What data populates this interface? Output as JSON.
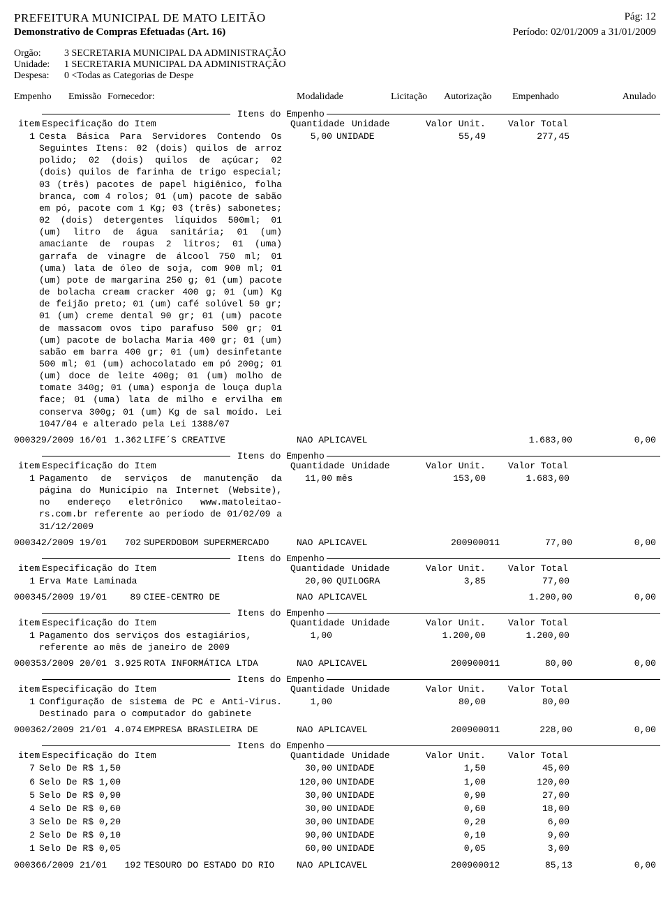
{
  "header": {
    "prefeitura": "PREFEITURA MUNICIPAL DE MATO LEITÃO",
    "pag_label": "Pág:",
    "pag_num": "12",
    "demonstrativo": "Demonstrativo de Compras Efetuadas (Art. 16)",
    "periodo": "Período: 02/01/2009 a 31/01/2009"
  },
  "org": {
    "orgao_label": "Orgão:",
    "orgao_value": "3 SECRETARIA MUNICIPAL DA ADMINISTRAÇÃO",
    "unidade_label": "Unidade:",
    "unidade_value": "1 SECRETARIA MUNICIPAL DA ADMINISTRAÇÃO",
    "despesa_label": "Despesa:",
    "despesa_value": "0 <Todas as Categorias de Despe"
  },
  "cols": {
    "empenho": "Empenho",
    "emissao": "Emissão",
    "fornecedor": "Fornecedor:",
    "modalidade": "Modalidade",
    "licitacao": "Licitação",
    "autorizacao": "Autorização",
    "empenhado": "Empenhado",
    "anulado": "Anulado"
  },
  "section_header": {
    "itens": "Itens do Empenho",
    "item": "item",
    "espec": "Especificação do Item",
    "qtd": "Quantidade",
    "unidade": "Unidade",
    "vu": "Valor Unit.",
    "vt": "Valor Total"
  },
  "entries": [
    {
      "header_only": true,
      "items": [
        {
          "num": "1",
          "spec": "Cesta Básica Para Servidores Contendo Os Seguintes Itens: 02 (dois) quilos de arroz polido; 02 (dois) quilos de açúcar; 02 (dois) quilos de farinha de trigo especial; 03 (três) pacotes de papel higiênico, folha branca, com 4 rolos; 01 (um) pacote de sabão em pó, pacote com 1 Kg; 03 (três) sabonetes; 02 (dois) detergentes líquidos 500ml; 01 (um) litro de água sanitária; 01 (um) amaciante de roupas 2 litros; 01 (uma) garrafa de vinagre de álcool 750 ml; 01 (uma) lata de óleo de soja, com 900 ml; 01 (um) pote de margarina 250 g; 01 (um) pacote de bolacha cream cracker 400 g; 01 (um) Kg de feijão preto; 01 (um) café solúvel 50 gr; 01 (um) creme dental 90 gr; 01 (um) pacote de massacom ovos tipo parafuso 500 gr; 01 (um) pacote de bolacha Maria 400 gr; 01 (um) sabão em barra 400 gr; 01 (um) desinfetante 500 ml; 01 (um) achocolatado em pó 200g; 01 (um) doce de leite 400g; 01 (um) molho de tomate 340g; 01 (uma) esponja de louça dupla face; 01 (uma) lata de milho e ervilha em conserva 300g; 01 (um) Kg de sal moído. Lei 1047/04 e alterado pela Lei 1388/07",
          "qty": "5,00",
          "unit": "UNIDADE",
          "vu": "55,49",
          "vt": "277,45",
          "justify": true
        }
      ]
    },
    {
      "empenho": "000329/2009",
      "emissao": "16/01",
      "cod": "1.362",
      "fornecedor": "LIFE´S CREATIVE",
      "modalidade": "NAO APLICAVEL",
      "licitacao": "",
      "autorizacao": "",
      "empenhado": "1.683,00",
      "anulado": "0,00",
      "items": [
        {
          "num": "1",
          "spec": "Pagamento de serviços de manutenção da página do Município na Internet (Website), no endereço eletrônico www.matoleitao-rs.com.br referente ao período de 01/02/09 a 31/12/2009",
          "qty": "11,00",
          "unit": "mês",
          "vu": "153,00",
          "vt": "1.683,00",
          "justify": true
        }
      ]
    },
    {
      "empenho": "000342/2009",
      "emissao": "19/01",
      "cod": "702",
      "fornecedor": "SUPERDOBOM SUPERMERCADO",
      "modalidade": "NAO APLICAVEL",
      "licitacao": "",
      "autorizacao": "200900011",
      "empenhado": "77,00",
      "anulado": "0,00",
      "items": [
        {
          "num": "1",
          "spec": "Erva Mate Laminada",
          "qty": "20,00",
          "unit": "QUILOGRA",
          "vu": "3,85",
          "vt": "77,00",
          "justify": false
        }
      ]
    },
    {
      "empenho": "000345/2009",
      "emissao": "19/01",
      "cod": "89",
      "fornecedor": "CIEE-CENTRO DE",
      "modalidade": "NAO APLICAVEL",
      "licitacao": "",
      "autorizacao": "",
      "empenhado": "1.200,00",
      "anulado": "0,00",
      "items": [
        {
          "num": "1",
          "spec": "Pagamento dos serviços dos estagiários, referente ao mês de janeiro de 2009",
          "qty": "1,00",
          "unit": "",
          "vu": "1.200,00",
          "vt": "1.200,00",
          "justify": false
        }
      ]
    },
    {
      "empenho": "000353/2009",
      "emissao": "20/01",
      "cod": "3.925",
      "fornecedor": "ROTA INFORMÁTICA LTDA",
      "modalidade": "NAO APLICAVEL",
      "licitacao": "",
      "autorizacao": "200900011",
      "empenhado": "80,00",
      "anulado": "0,00",
      "items": [
        {
          "num": "1",
          "spec": "Configuração de sistema de PC e Anti-Virus. Destinado para o computador do gabinete",
          "qty": "1,00",
          "unit": "",
          "vu": "80,00",
          "vt": "80,00",
          "justify": true
        }
      ]
    },
    {
      "empenho": "000362/2009",
      "emissao": "21/01",
      "cod": "4.074",
      "fornecedor": "EMPRESA BRASILEIRA DE",
      "modalidade": "NAO APLICAVEL",
      "licitacao": "",
      "autorizacao": "200900011",
      "empenhado": "228,00",
      "anulado": "0,00",
      "items": [
        {
          "num": "7",
          "spec": "Selo De R$ 1,50",
          "qty": "30,00",
          "unit": "UNIDADE",
          "vu": "1,50",
          "vt": "45,00",
          "justify": false
        },
        {
          "num": "6",
          "spec": "Selo De R$ 1,00",
          "qty": "120,00",
          "unit": "UNIDADE",
          "vu": "1,00",
          "vt": "120,00",
          "justify": false
        },
        {
          "num": "5",
          "spec": "Selo De R$ 0,90",
          "qty": "30,00",
          "unit": "UNIDADE",
          "vu": "0,90",
          "vt": "27,00",
          "justify": false
        },
        {
          "num": "4",
          "spec": "Selo De R$ 0,60",
          "qty": "30,00",
          "unit": "UNIDADE",
          "vu": "0,60",
          "vt": "18,00",
          "justify": false
        },
        {
          "num": "3",
          "spec": "Selo De R$ 0,20",
          "qty": "30,00",
          "unit": "UNIDADE",
          "vu": "0,20",
          "vt": "6,00",
          "justify": false
        },
        {
          "num": "2",
          "spec": "Selo De R$ 0,10",
          "qty": "90,00",
          "unit": "UNIDADE",
          "vu": "0,10",
          "vt": "9,00",
          "justify": false
        },
        {
          "num": "1",
          "spec": "Selo De R$ 0,05",
          "qty": "60,00",
          "unit": "UNIDADE",
          "vu": "0,05",
          "vt": "3,00",
          "justify": false
        }
      ]
    },
    {
      "empenho": "000366/2009",
      "emissao": "21/01",
      "cod": "192",
      "fornecedor": "TESOURO DO ESTADO DO RIO",
      "modalidade": "NAO APLICAVEL",
      "licitacao": "",
      "autorizacao": "200900012",
      "empenhado": "85,13",
      "anulado": "0,00",
      "no_items": true
    }
  ]
}
